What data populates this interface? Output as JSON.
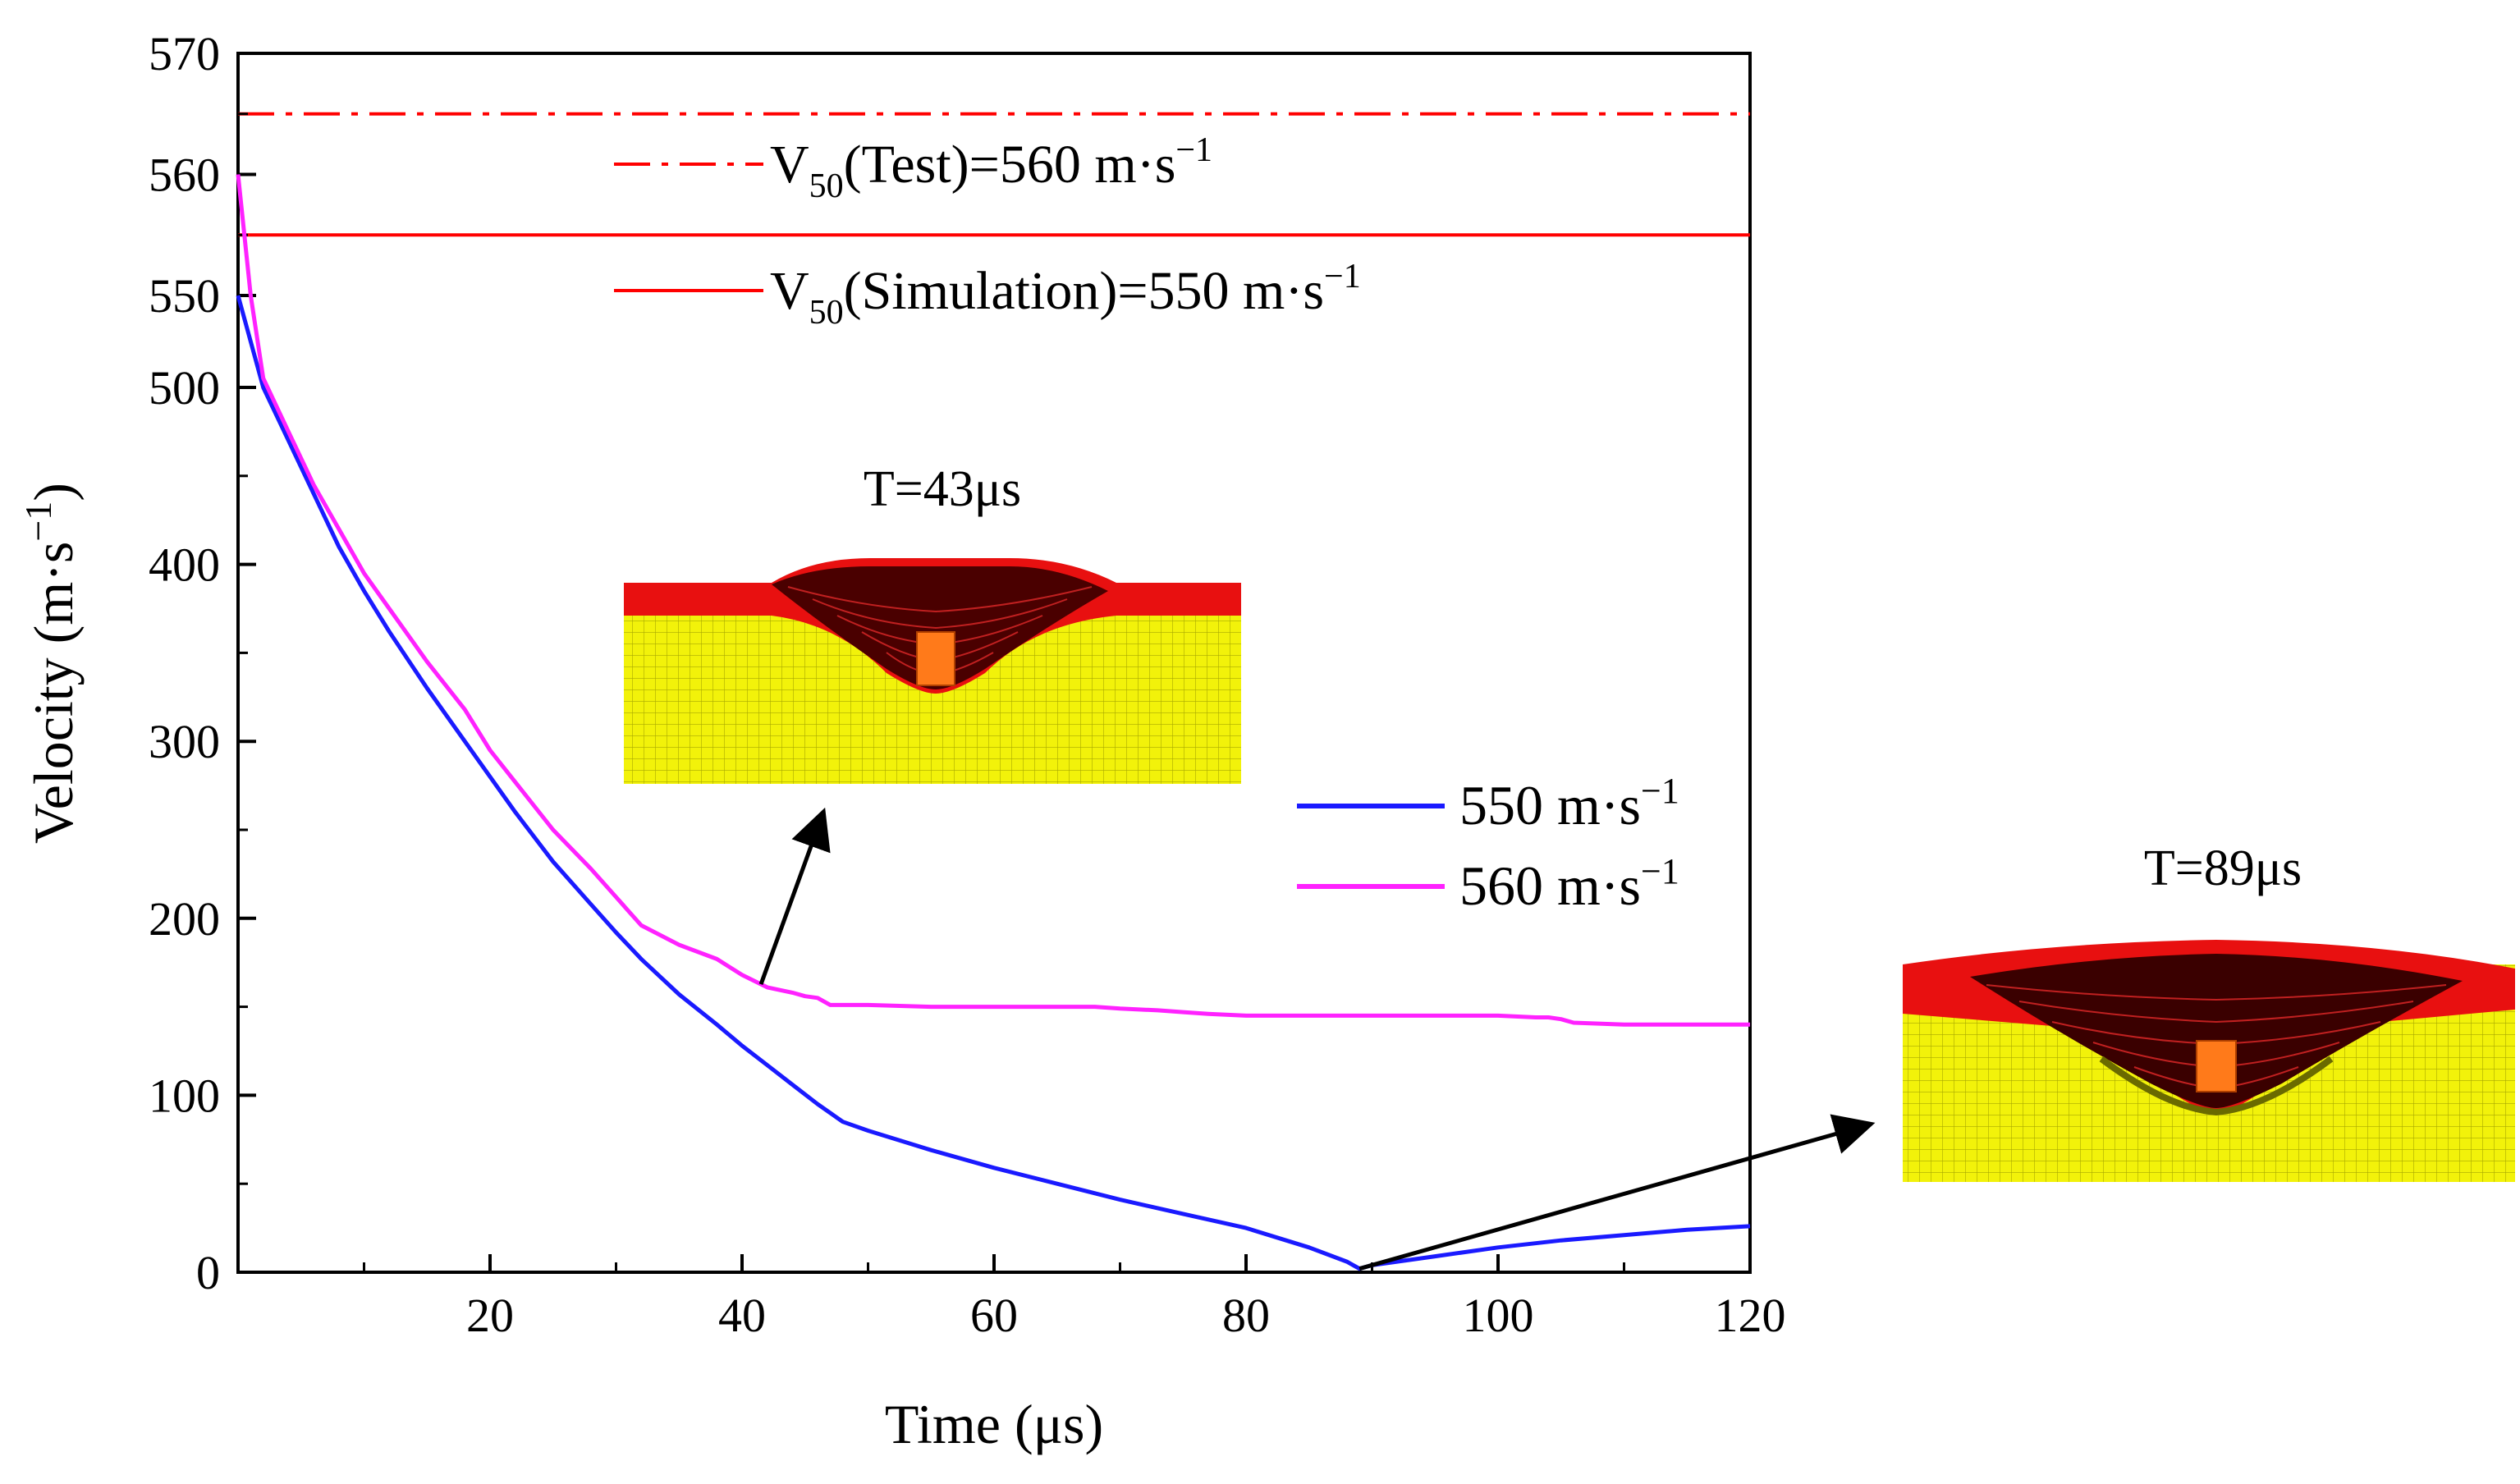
{
  "chart_data": {
    "type": "line",
    "xlabel": "Time (μs)",
    "ylabel": {
      "base": "Velocity (m·s",
      "sup": "−1",
      "tail": ")"
    },
    "xlim": [
      0,
      120
    ],
    "x_ticks": [
      20,
      40,
      60,
      80,
      100,
      120
    ],
    "x_minor_step": 10,
    "ylim_lower": [
      0,
      500
    ],
    "ylim_upper": [
      550,
      570
    ],
    "y_ticks_lower": [
      0,
      100,
      200,
      300,
      400,
      500
    ],
    "y_ticks_upper": [
      550,
      560,
      570
    ],
    "y_minor_lower_step": 50,
    "grid": false,
    "series": [
      {
        "name": "550 m·s⁻¹",
        "legend_base": "550 m·s",
        "legend_sup": "−1",
        "color": "#1a1aff",
        "x": [
          0,
          2,
          4,
          6,
          8,
          10,
          12,
          15,
          18,
          20,
          22,
          25,
          28,
          30,
          32,
          35,
          38,
          40,
          42,
          44,
          46,
          48,
          50,
          55,
          60,
          65,
          70,
          75,
          80,
          85,
          88,
          89,
          90,
          95,
          100,
          105,
          110,
          115,
          120
        ],
        "y": [
          550,
          500,
          470,
          440,
          410,
          385,
          362,
          330,
          300,
          280,
          260,
          232,
          208,
          192,
          177,
          157,
          140,
          128,
          117,
          106,
          95,
          85,
          80,
          69,
          59,
          50,
          41,
          33,
          25,
          14,
          6,
          2,
          4,
          9,
          14,
          18,
          21,
          24,
          26
        ]
      },
      {
        "name": "560 m·s⁻¹",
        "legend_base": "560 m·s",
        "legend_sup": "−1",
        "color": "#ff22ff",
        "x": [
          0,
          1,
          2,
          4,
          6,
          8,
          10,
          12,
          15,
          18,
          20,
          22,
          25,
          28,
          30,
          32,
          35,
          38,
          40,
          42,
          44,
          45,
          46,
          47,
          50,
          55,
          60,
          65,
          68,
          70,
          73,
          75,
          77,
          80,
          85,
          90,
          95,
          100,
          103,
          104,
          105,
          106,
          110,
          115,
          120
        ],
        "y": [
          560,
          550,
          505,
          475,
          445,
          420,
          395,
          375,
          345,
          318,
          295,
          277,
          250,
          228,
          212,
          196,
          185,
          177,
          168,
          161,
          158,
          156,
          155,
          151,
          151,
          150,
          150,
          150,
          150,
          149,
          148,
          147,
          146,
          145,
          145,
          145,
          145,
          145,
          144,
          144,
          143,
          141,
          140,
          140,
          140
        ]
      }
    ],
    "reference_lines": [
      {
        "name": "V50(Test)=560 m·s⁻¹",
        "base": "V",
        "sub": "50",
        "text": "(Test)=560 m·s",
        "sup": "−1",
        "y": 565,
        "style": "dash-dot",
        "color": "#ff0000"
      },
      {
        "name": "V50(Simulation)=550 m·s⁻¹",
        "base": "V",
        "sub": "50",
        "text": "(Simulation)=550 m·s",
        "sup": "−1",
        "y": 555,
        "style": "solid",
        "color": "#ff0000"
      }
    ],
    "annotations": [
      {
        "label": "T=43μs",
        "target_series": 1,
        "target_x": 41.5
      },
      {
        "label": "T=89μs",
        "target_series": 0,
        "target_x": 89
      }
    ]
  },
  "colors": {
    "plate_top": "#e81010",
    "plate_crater": "#4a0000",
    "plate_yellow": "#f2f20a",
    "mesh_line": "#9a9a00",
    "projectile": "#ff7a1a",
    "arrow": "#000000"
  }
}
